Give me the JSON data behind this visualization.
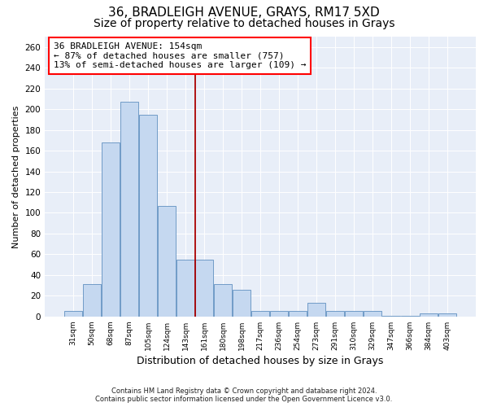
{
  "title1": "36, BRADLEIGH AVENUE, GRAYS, RM17 5XD",
  "title2": "Size of property relative to detached houses in Grays",
  "xlabel": "Distribution of detached houses by size in Grays",
  "ylabel": "Number of detached properties",
  "annotation_title": "36 BRADLEIGH AVENUE: 154sqm",
  "annotation_line1": "← 87% of detached houses are smaller (757)",
  "annotation_line2": "13% of semi-detached houses are larger (109) →",
  "footer1": "Contains HM Land Registry data © Crown copyright and database right 2024.",
  "footer2": "Contains public sector information licensed under the Open Government Licence v3.0.",
  "categories": [
    "31sqm",
    "50sqm",
    "68sqm",
    "87sqm",
    "105sqm",
    "124sqm",
    "143sqm",
    "161sqm",
    "180sqm",
    "198sqm",
    "217sqm",
    "236sqm",
    "254sqm",
    "273sqm",
    "291sqm",
    "310sqm",
    "329sqm",
    "347sqm",
    "366sqm",
    "384sqm",
    "403sqm"
  ],
  "values": [
    5,
    31,
    168,
    207,
    195,
    107,
    55,
    55,
    31,
    26,
    5,
    5,
    5,
    13,
    5,
    5,
    5,
    1,
    1,
    3,
    3
  ],
  "bar_color": "#c5d8f0",
  "bar_edge_color": "#6090c0",
  "vline_color": "#aa0000",
  "vline_x": 7.0,
  "ylim": [
    0,
    270
  ],
  "yticks": [
    0,
    20,
    40,
    60,
    80,
    100,
    120,
    140,
    160,
    180,
    200,
    220,
    240,
    260
  ],
  "bg_color": "#e8eef8",
  "title1_fontsize": 11,
  "title2_fontsize": 10,
  "xlabel_fontsize": 9,
  "ylabel_fontsize": 8,
  "annotation_fontsize": 8
}
